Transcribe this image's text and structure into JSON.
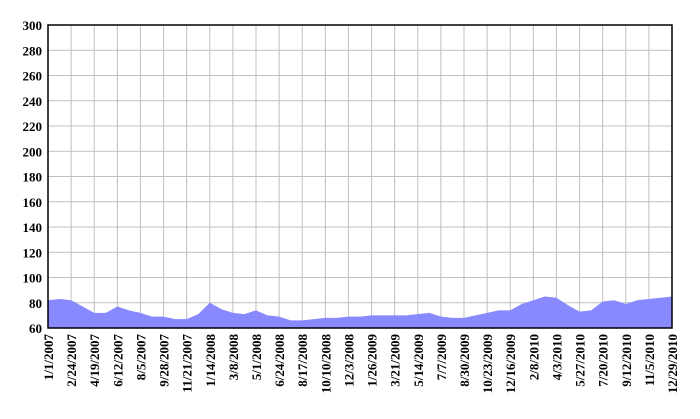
{
  "chart_data": {
    "type": "area",
    "categories": [
      "1/1/2007",
      null,
      "2/24/2007",
      null,
      "4/19/2007",
      null,
      "6/12/2007",
      null,
      "8/5/2007",
      null,
      "9/28/2007",
      null,
      "11/21/2007",
      null,
      "1/14/2008",
      null,
      "3/8/2008",
      null,
      "5/1/2008",
      null,
      "6/24/2008",
      null,
      "8/17/2008",
      null,
      "10/10/2008",
      null,
      "12/3/2008",
      null,
      "1/26/2009",
      null,
      "3/21/2009",
      null,
      "5/14/2009",
      null,
      "7/7/2009",
      null,
      "8/30/2009",
      null,
      "10/23/2009",
      null,
      "12/16/2009",
      null,
      "2/8/2010",
      null,
      "4/3/2010",
      null,
      "5/27/2010",
      null,
      "7/20/2010",
      null,
      "9/12/2010",
      null,
      "11/5/2010",
      null,
      "12/29/2010"
    ],
    "values": [
      82,
      83,
      82,
      77,
      72,
      72,
      77,
      74,
      72,
      69,
      69,
      67,
      67,
      71,
      80,
      75,
      72,
      71,
      74,
      70,
      69,
      66,
      66,
      67,
      68,
      68,
      69,
      69,
      70,
      70,
      70,
      70,
      71,
      72,
      69,
      68,
      68,
      70,
      72,
      74,
      74,
      79,
      82,
      85,
      84,
      78,
      73,
      74,
      81,
      82,
      79,
      82,
      83,
      84,
      85
    ],
    "color": "#8888ff",
    "ylim": [
      60,
      300
    ],
    "yticks": [
      60,
      80,
      100,
      120,
      140,
      160,
      180,
      200,
      220,
      240,
      260,
      280,
      300
    ],
    "grid": true
  }
}
